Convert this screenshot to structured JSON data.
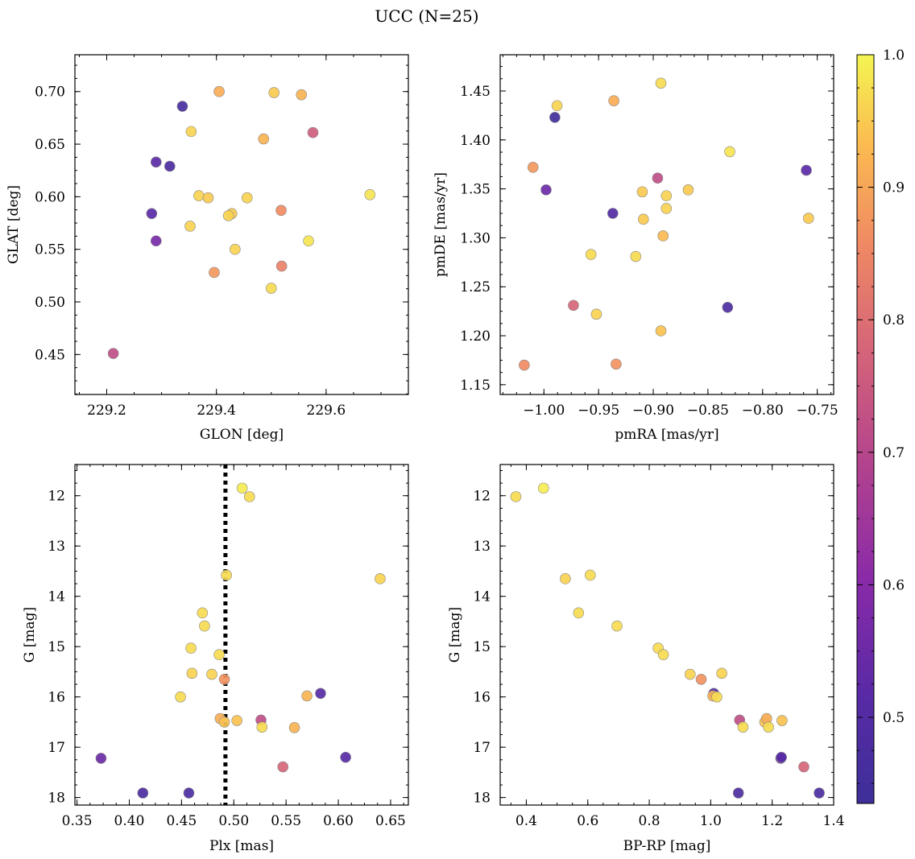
{
  "title": "UCC (N=25)",
  "colorbar": {
    "cmap": "plasma",
    "range": [
      0.435,
      1.0
    ],
    "ticks": [
      "0.5",
      "0.6",
      "0.7",
      "0.8",
      "0.9",
      "1.0"
    ],
    "tick_values": [
      0.5,
      0.6,
      0.7,
      0.8,
      0.9,
      1.0
    ]
  },
  "chart_data": [
    {
      "type": "scatter",
      "xlabel": "GLON [deg]",
      "ylabel": "GLAT [deg]",
      "xlim": [
        229.142,
        229.75
      ],
      "ylim": [
        0.412,
        0.735
      ],
      "xticks": [
        229.2,
        229.4,
        229.6
      ],
      "xtick_labels": [
        "229.2",
        "229.4",
        "229.6"
      ],
      "yticks": [
        0.45,
        0.5,
        0.55,
        0.6,
        0.65,
        0.7
      ],
      "ytick_labels": [
        "0.45",
        "0.50",
        "0.55",
        "0.60",
        "0.65",
        "0.70"
      ],
      "points": [
        {
          "x": 229.338,
          "y": 0.686,
          "c": 0.47
        },
        {
          "x": 229.405,
          "y": 0.7,
          "c": 0.91
        },
        {
          "x": 229.505,
          "y": 0.699,
          "c": 0.95
        },
        {
          "x": 229.555,
          "y": 0.697,
          "c": 0.92
        },
        {
          "x": 229.354,
          "y": 0.662,
          "c": 0.96
        },
        {
          "x": 229.576,
          "y": 0.661,
          "c": 0.76
        },
        {
          "x": 229.486,
          "y": 0.655,
          "c": 0.92
        },
        {
          "x": 229.29,
          "y": 0.633,
          "c": 0.52
        },
        {
          "x": 229.315,
          "y": 0.629,
          "c": 0.48
        },
        {
          "x": 229.68,
          "y": 0.602,
          "c": 0.98
        },
        {
          "x": 229.368,
          "y": 0.601,
          "c": 0.96
        },
        {
          "x": 229.385,
          "y": 0.599,
          "c": 0.95
        },
        {
          "x": 229.456,
          "y": 0.599,
          "c": 0.96
        },
        {
          "x": 229.282,
          "y": 0.584,
          "c": 0.52
        },
        {
          "x": 229.428,
          "y": 0.584,
          "c": 0.95
        },
        {
          "x": 229.422,
          "y": 0.582,
          "c": 0.96
        },
        {
          "x": 229.518,
          "y": 0.587,
          "c": 0.86
        },
        {
          "x": 229.352,
          "y": 0.572,
          "c": 0.96
        },
        {
          "x": 229.568,
          "y": 0.558,
          "c": 0.98
        },
        {
          "x": 229.29,
          "y": 0.558,
          "c": 0.57
        },
        {
          "x": 229.434,
          "y": 0.55,
          "c": 0.96
        },
        {
          "x": 229.519,
          "y": 0.534,
          "c": 0.84
        },
        {
          "x": 229.396,
          "y": 0.528,
          "c": 0.88
        },
        {
          "x": 229.5,
          "y": 0.513,
          "c": 0.97
        },
        {
          "x": 229.212,
          "y": 0.451,
          "c": 0.72
        }
      ]
    },
    {
      "type": "scatter",
      "xlabel": "pmRA [mas/yr]",
      "ylabel": "pmDE [mas/yr]",
      "xlim": [
        -1.04,
        -0.735
      ],
      "ylim": [
        1.14,
        1.487
      ],
      "xticks": [
        -1.0,
        -0.95,
        -0.9,
        -0.85,
        -0.8,
        -0.75
      ],
      "xtick_labels": [
        "−1.00",
        "−0.95",
        "−0.90",
        "−0.85",
        "−0.80",
        "−0.75"
      ],
      "yticks": [
        1.15,
        1.2,
        1.25,
        1.3,
        1.35,
        1.4,
        1.45
      ],
      "ytick_labels": [
        "1.15",
        "1.20",
        "1.25",
        "1.30",
        "1.35",
        "1.40",
        "1.45"
      ],
      "points": [
        {
          "x": -0.893,
          "y": 1.458,
          "c": 0.97
        },
        {
          "x": -0.936,
          "y": 1.44,
          "c": 0.91
        },
        {
          "x": -0.988,
          "y": 1.435,
          "c": 0.96
        },
        {
          "x": -0.99,
          "y": 1.423,
          "c": 0.45
        },
        {
          "x": -0.83,
          "y": 1.388,
          "c": 0.98
        },
        {
          "x": -1.01,
          "y": 1.372,
          "c": 0.88
        },
        {
          "x": -0.76,
          "y": 1.369,
          "c": 0.52
        },
        {
          "x": -0.896,
          "y": 1.361,
          "c": 0.72
        },
        {
          "x": -0.998,
          "y": 1.349,
          "c": 0.55
        },
        {
          "x": -0.868,
          "y": 1.349,
          "c": 0.95
        },
        {
          "x": -0.91,
          "y": 1.347,
          "c": 0.95
        },
        {
          "x": -0.888,
          "y": 1.343,
          "c": 0.96
        },
        {
          "x": -0.937,
          "y": 1.325,
          "c": 0.5
        },
        {
          "x": -0.888,
          "y": 1.33,
          "c": 0.96
        },
        {
          "x": -0.909,
          "y": 1.319,
          "c": 0.95
        },
        {
          "x": -0.758,
          "y": 1.32,
          "c": 0.95
        },
        {
          "x": -0.891,
          "y": 1.302,
          "c": 0.93
        },
        {
          "x": -0.957,
          "y": 1.283,
          "c": 0.97
        },
        {
          "x": -0.916,
          "y": 1.281,
          "c": 0.97
        },
        {
          "x": -0.973,
          "y": 1.231,
          "c": 0.78
        },
        {
          "x": -0.952,
          "y": 1.222,
          "c": 0.96
        },
        {
          "x": -0.832,
          "y": 1.229,
          "c": 0.48
        },
        {
          "x": -0.893,
          "y": 1.205,
          "c": 0.94
        },
        {
          "x": -1.018,
          "y": 1.17,
          "c": 0.86
        },
        {
          "x": -0.934,
          "y": 1.171,
          "c": 0.87
        }
      ]
    },
    {
      "type": "scatter",
      "xlabel": "Plx [mas]",
      "ylabel": "G [mag]",
      "xlim": [
        0.348,
        0.667
      ],
      "ylim": [
        18.15,
        11.38
      ],
      "vline": 0.492,
      "xticks": [
        0.35,
        0.4,
        0.45,
        0.5,
        0.55,
        0.6,
        0.65
      ],
      "xtick_labels": [
        "0.35",
        "0.40",
        "0.45",
        "0.50",
        "0.55",
        "0.60",
        "0.65"
      ],
      "yticks": [
        12,
        13,
        14,
        15,
        16,
        17,
        18
      ],
      "ytick_labels": [
        "12",
        "13",
        "14",
        "15",
        "16",
        "17",
        "18"
      ],
      "points": [
        {
          "x": 0.508,
          "y": 11.85,
          "c": 0.99
        },
        {
          "x": 0.515,
          "y": 12.02,
          "c": 0.97
        },
        {
          "x": 0.493,
          "y": 13.58,
          "c": 0.97
        },
        {
          "x": 0.64,
          "y": 13.65,
          "c": 0.96
        },
        {
          "x": 0.47,
          "y": 14.33,
          "c": 0.97
        },
        {
          "x": 0.472,
          "y": 14.59,
          "c": 0.97
        },
        {
          "x": 0.459,
          "y": 15.03,
          "c": 0.97
        },
        {
          "x": 0.486,
          "y": 15.16,
          "c": 0.97
        },
        {
          "x": 0.46,
          "y": 15.53,
          "c": 0.96
        },
        {
          "x": 0.479,
          "y": 15.55,
          "c": 0.96
        },
        {
          "x": 0.491,
          "y": 15.65,
          "c": 0.87
        },
        {
          "x": 0.449,
          "y": 16.0,
          "c": 0.97
        },
        {
          "x": 0.57,
          "y": 15.98,
          "c": 0.92
        },
        {
          "x": 0.583,
          "y": 15.93,
          "c": 0.51
        },
        {
          "x": 0.487,
          "y": 16.43,
          "c": 0.91
        },
        {
          "x": 0.491,
          "y": 16.5,
          "c": 0.94
        },
        {
          "x": 0.503,
          "y": 16.47,
          "c": 0.94
        },
        {
          "x": 0.526,
          "y": 16.46,
          "c": 0.72
        },
        {
          "x": 0.527,
          "y": 16.6,
          "c": 0.97
        },
        {
          "x": 0.558,
          "y": 16.61,
          "c": 0.92
        },
        {
          "x": 0.373,
          "y": 17.22,
          "c": 0.55
        },
        {
          "x": 0.607,
          "y": 17.2,
          "c": 0.51
        },
        {
          "x": 0.547,
          "y": 17.39,
          "c": 0.78
        },
        {
          "x": 0.413,
          "y": 17.91,
          "c": 0.48
        },
        {
          "x": 0.457,
          "y": 17.91,
          "c": 0.48
        }
      ]
    },
    {
      "type": "scatter",
      "xlabel": "BP-RP [mag]",
      "ylabel": "G [mag]",
      "xlim": [
        0.315,
        1.4
      ],
      "ylim": [
        18.15,
        11.38
      ],
      "xticks": [
        0.4,
        0.6,
        0.8,
        1.0,
        1.2,
        1.4
      ],
      "xtick_labels": [
        "0.4",
        "0.6",
        "0.8",
        "1.0",
        "1.2",
        "1.4"
      ],
      "yticks": [
        12,
        13,
        14,
        15,
        16,
        17,
        18
      ],
      "ytick_labels": [
        "12",
        "13",
        "14",
        "15",
        "16",
        "17",
        "18"
      ],
      "points": [
        {
          "x": 0.366,
          "y": 12.02,
          "c": 0.97
        },
        {
          "x": 0.456,
          "y": 11.85,
          "c": 0.99
        },
        {
          "x": 0.527,
          "y": 13.65,
          "c": 0.96
        },
        {
          "x": 0.608,
          "y": 13.58,
          "c": 0.97
        },
        {
          "x": 0.57,
          "y": 14.33,
          "c": 0.97
        },
        {
          "x": 0.695,
          "y": 14.59,
          "c": 0.97
        },
        {
          "x": 0.829,
          "y": 15.03,
          "c": 0.97
        },
        {
          "x": 0.846,
          "y": 15.16,
          "c": 0.97
        },
        {
          "x": 0.933,
          "y": 15.55,
          "c": 0.96
        },
        {
          "x": 1.036,
          "y": 15.53,
          "c": 0.96
        },
        {
          "x": 0.969,
          "y": 15.65,
          "c": 0.87
        },
        {
          "x": 1.01,
          "y": 15.93,
          "c": 0.51
        },
        {
          "x": 1.007,
          "y": 15.98,
          "c": 0.92
        },
        {
          "x": 1.02,
          "y": 16.0,
          "c": 0.97
        },
        {
          "x": 1.094,
          "y": 16.46,
          "c": 0.72
        },
        {
          "x": 1.105,
          "y": 16.6,
          "c": 0.97
        },
        {
          "x": 1.176,
          "y": 16.5,
          "c": 0.94
        },
        {
          "x": 1.182,
          "y": 16.43,
          "c": 0.91
        },
        {
          "x": 1.188,
          "y": 16.6,
          "c": 0.97
        },
        {
          "x": 1.232,
          "y": 16.47,
          "c": 0.94
        },
        {
          "x": 1.228,
          "y": 17.22,
          "c": 0.55
        },
        {
          "x": 1.23,
          "y": 17.2,
          "c": 0.51
        },
        {
          "x": 1.303,
          "y": 17.39,
          "c": 0.78
        },
        {
          "x": 1.09,
          "y": 17.91,
          "c": 0.48
        },
        {
          "x": 1.353,
          "y": 17.91,
          "c": 0.48
        }
      ]
    }
  ]
}
